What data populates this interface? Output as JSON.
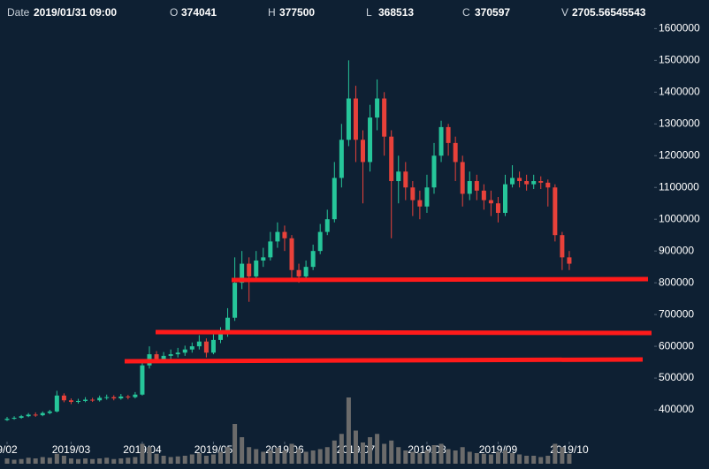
{
  "header": {
    "date_label": "Date",
    "date": "2019/01/31 09:00",
    "open_label": "O",
    "open": 374041,
    "high_label": "H",
    "high": 377500,
    "low_label": "L",
    "low": 368513,
    "close_label": "C",
    "close": 370597,
    "volume_label": "V",
    "volume": 2705.56545543
  },
  "chart_data": {
    "type": "candlestick",
    "categories": [
      null,
      null,
      null,
      null,
      null,
      null,
      null,
      null,
      null,
      null,
      null,
      null,
      null,
      null,
      null,
      null,
      null,
      null,
      null,
      null,
      null,
      null,
      null,
      null,
      null,
      null,
      null,
      null,
      null,
      null,
      null,
      null,
      null,
      null,
      null,
      null,
      null,
      null,
      null,
      null,
      null,
      null,
      null,
      null,
      null,
      null,
      null,
      null,
      null,
      null,
      null,
      null,
      null,
      null,
      null,
      null,
      null,
      null,
      null,
      null,
      null,
      null,
      null,
      null,
      null,
      null,
      null,
      null,
      null,
      null,
      null,
      null,
      null,
      null,
      null,
      null,
      null,
      null,
      null,
      null
    ],
    "open": [
      368000,
      372000,
      375000,
      380000,
      385000,
      383000,
      390000,
      395000,
      445000,
      430000,
      425000,
      428000,
      432000,
      430000,
      438000,
      440000,
      436000,
      442000,
      440000,
      448000,
      540000,
      575000,
      560000,
      570000,
      575000,
      580000,
      590000,
      600000,
      615000,
      580000,
      620000,
      640000,
      690000,
      800000,
      860000,
      820000,
      870000,
      880000,
      930000,
      960000,
      940000,
      840000,
      820000,
      850000,
      900000,
      960000,
      1000000,
      1130000,
      1250000,
      1380000,
      1250000,
      1180000,
      1320000,
      1380000,
      1260000,
      1120000,
      1150000,
      1100000,
      1060000,
      1040000,
      1100000,
      1200000,
      1290000,
      1240000,
      1180000,
      1080000,
      1120000,
      1090000,
      1060000,
      1050000,
      1020000,
      1110000,
      1130000,
      1120000,
      1110000,
      1120000,
      1115000,
      1100000,
      950000,
      880000
    ],
    "high": [
      378000,
      380000,
      384000,
      390000,
      392000,
      395000,
      400000,
      460000,
      452000,
      436000,
      435000,
      440000,
      438000,
      445000,
      448000,
      446000,
      450000,
      447000,
      456000,
      560000,
      600000,
      585000,
      582000,
      590000,
      595000,
      602000,
      612000,
      635000,
      625000,
      640000,
      660000,
      720000,
      880000,
      900000,
      880000,
      900000,
      910000,
      960000,
      990000,
      980000,
      950000,
      860000,
      870000,
      920000,
      985000,
      1030000,
      1180000,
      1300000,
      1500000,
      1420000,
      1280000,
      1360000,
      1440000,
      1400000,
      1280000,
      1200000,
      1180000,
      1120000,
      1090000,
      1140000,
      1240000,
      1310000,
      1300000,
      1260000,
      1200000,
      1150000,
      1140000,
      1110000,
      1090000,
      1070000,
      1140000,
      1170000,
      1150000,
      1140000,
      1140000,
      1135000,
      1125000,
      1110000,
      960000,
      900000
    ],
    "low": [
      365000,
      369000,
      372000,
      377000,
      378000,
      380000,
      386000,
      392000,
      424000,
      418000,
      420000,
      424000,
      425000,
      426000,
      432000,
      430000,
      432000,
      433000,
      436000,
      445000,
      530000,
      550000,
      552000,
      560000,
      565000,
      570000,
      580000,
      590000,
      565000,
      575000,
      610000,
      630000,
      680000,
      780000,
      740000,
      810000,
      850000,
      870000,
      910000,
      900000,
      810000,
      800000,
      805000,
      840000,
      890000,
      950000,
      990000,
      1100000,
      1230000,
      1180000,
      1050000,
      1150000,
      1280000,
      1200000,
      940000,
      1050000,
      1060000,
      1010000,
      1000000,
      1020000,
      1080000,
      1180000,
      1200000,
      1120000,
      1040000,
      1060000,
      1060000,
      1030000,
      1010000,
      990000,
      1010000,
      1100000,
      1100000,
      1090000,
      1095000,
      1095000,
      1040000,
      930000,
      840000,
      840000
    ],
    "close": [
      372000,
      375000,
      380000,
      385000,
      383000,
      390000,
      395000,
      445000,
      430000,
      425000,
      428000,
      432000,
      430000,
      438000,
      440000,
      436000,
      442000,
      440000,
      448000,
      540000,
      575000,
      560000,
      570000,
      575000,
      580000,
      590000,
      600000,
      615000,
      580000,
      620000,
      640000,
      690000,
      800000,
      860000,
      820000,
      870000,
      880000,
      930000,
      960000,
      940000,
      840000,
      820000,
      850000,
      900000,
      960000,
      1000000,
      1130000,
      1250000,
      1380000,
      1250000,
      1180000,
      1320000,
      1380000,
      1260000,
      1120000,
      1150000,
      1100000,
      1060000,
      1040000,
      1100000,
      1200000,
      1290000,
      1240000,
      1180000,
      1080000,
      1120000,
      1090000,
      1060000,
      1050000,
      1020000,
      1110000,
      1130000,
      1120000,
      1110000,
      1120000,
      1115000,
      1100000,
      950000,
      880000,
      860000
    ],
    "volume": [
      8,
      6,
      7,
      9,
      8,
      10,
      9,
      15,
      12,
      8,
      7,
      8,
      7,
      8,
      9,
      7,
      8,
      9,
      10,
      30,
      25,
      15,
      12,
      10,
      11,
      12,
      14,
      16,
      12,
      14,
      18,
      25,
      60,
      40,
      25,
      22,
      18,
      20,
      24,
      20,
      30,
      22,
      18,
      20,
      22,
      25,
      35,
      45,
      100,
      50,
      32,
      40,
      45,
      30,
      35,
      25,
      20,
      18,
      16,
      20,
      28,
      30,
      22,
      20,
      25,
      18,
      16,
      15,
      14,
      18,
      20,
      16,
      14,
      12,
      12,
      10,
      12,
      30,
      25,
      15
    ],
    "up_color": "#26c69a",
    "down_color": "#e8413a",
    "volume_color": "#6b6b6b",
    "ylim": [
      300000,
      1690000
    ],
    "yticks": [
      400000,
      500000,
      600000,
      700000,
      800000,
      900000,
      1000000,
      1100000,
      1200000,
      1300000,
      1400000,
      1500000,
      1600000
    ],
    "xticks": [
      {
        "value": 0,
        "label": "9/02"
      },
      {
        "value": 9,
        "label": "2019/03"
      },
      {
        "value": 19,
        "label": "2019/04"
      },
      {
        "value": 29,
        "label": "2019/05"
      },
      {
        "value": 39,
        "label": "2019/06"
      },
      {
        "value": 49,
        "label": "2019/07"
      },
      {
        "value": 59,
        "label": "2019/08"
      },
      {
        "value": 69,
        "label": "2019/09"
      },
      {
        "value": 79,
        "label": "2019/10"
      }
    ]
  }
}
